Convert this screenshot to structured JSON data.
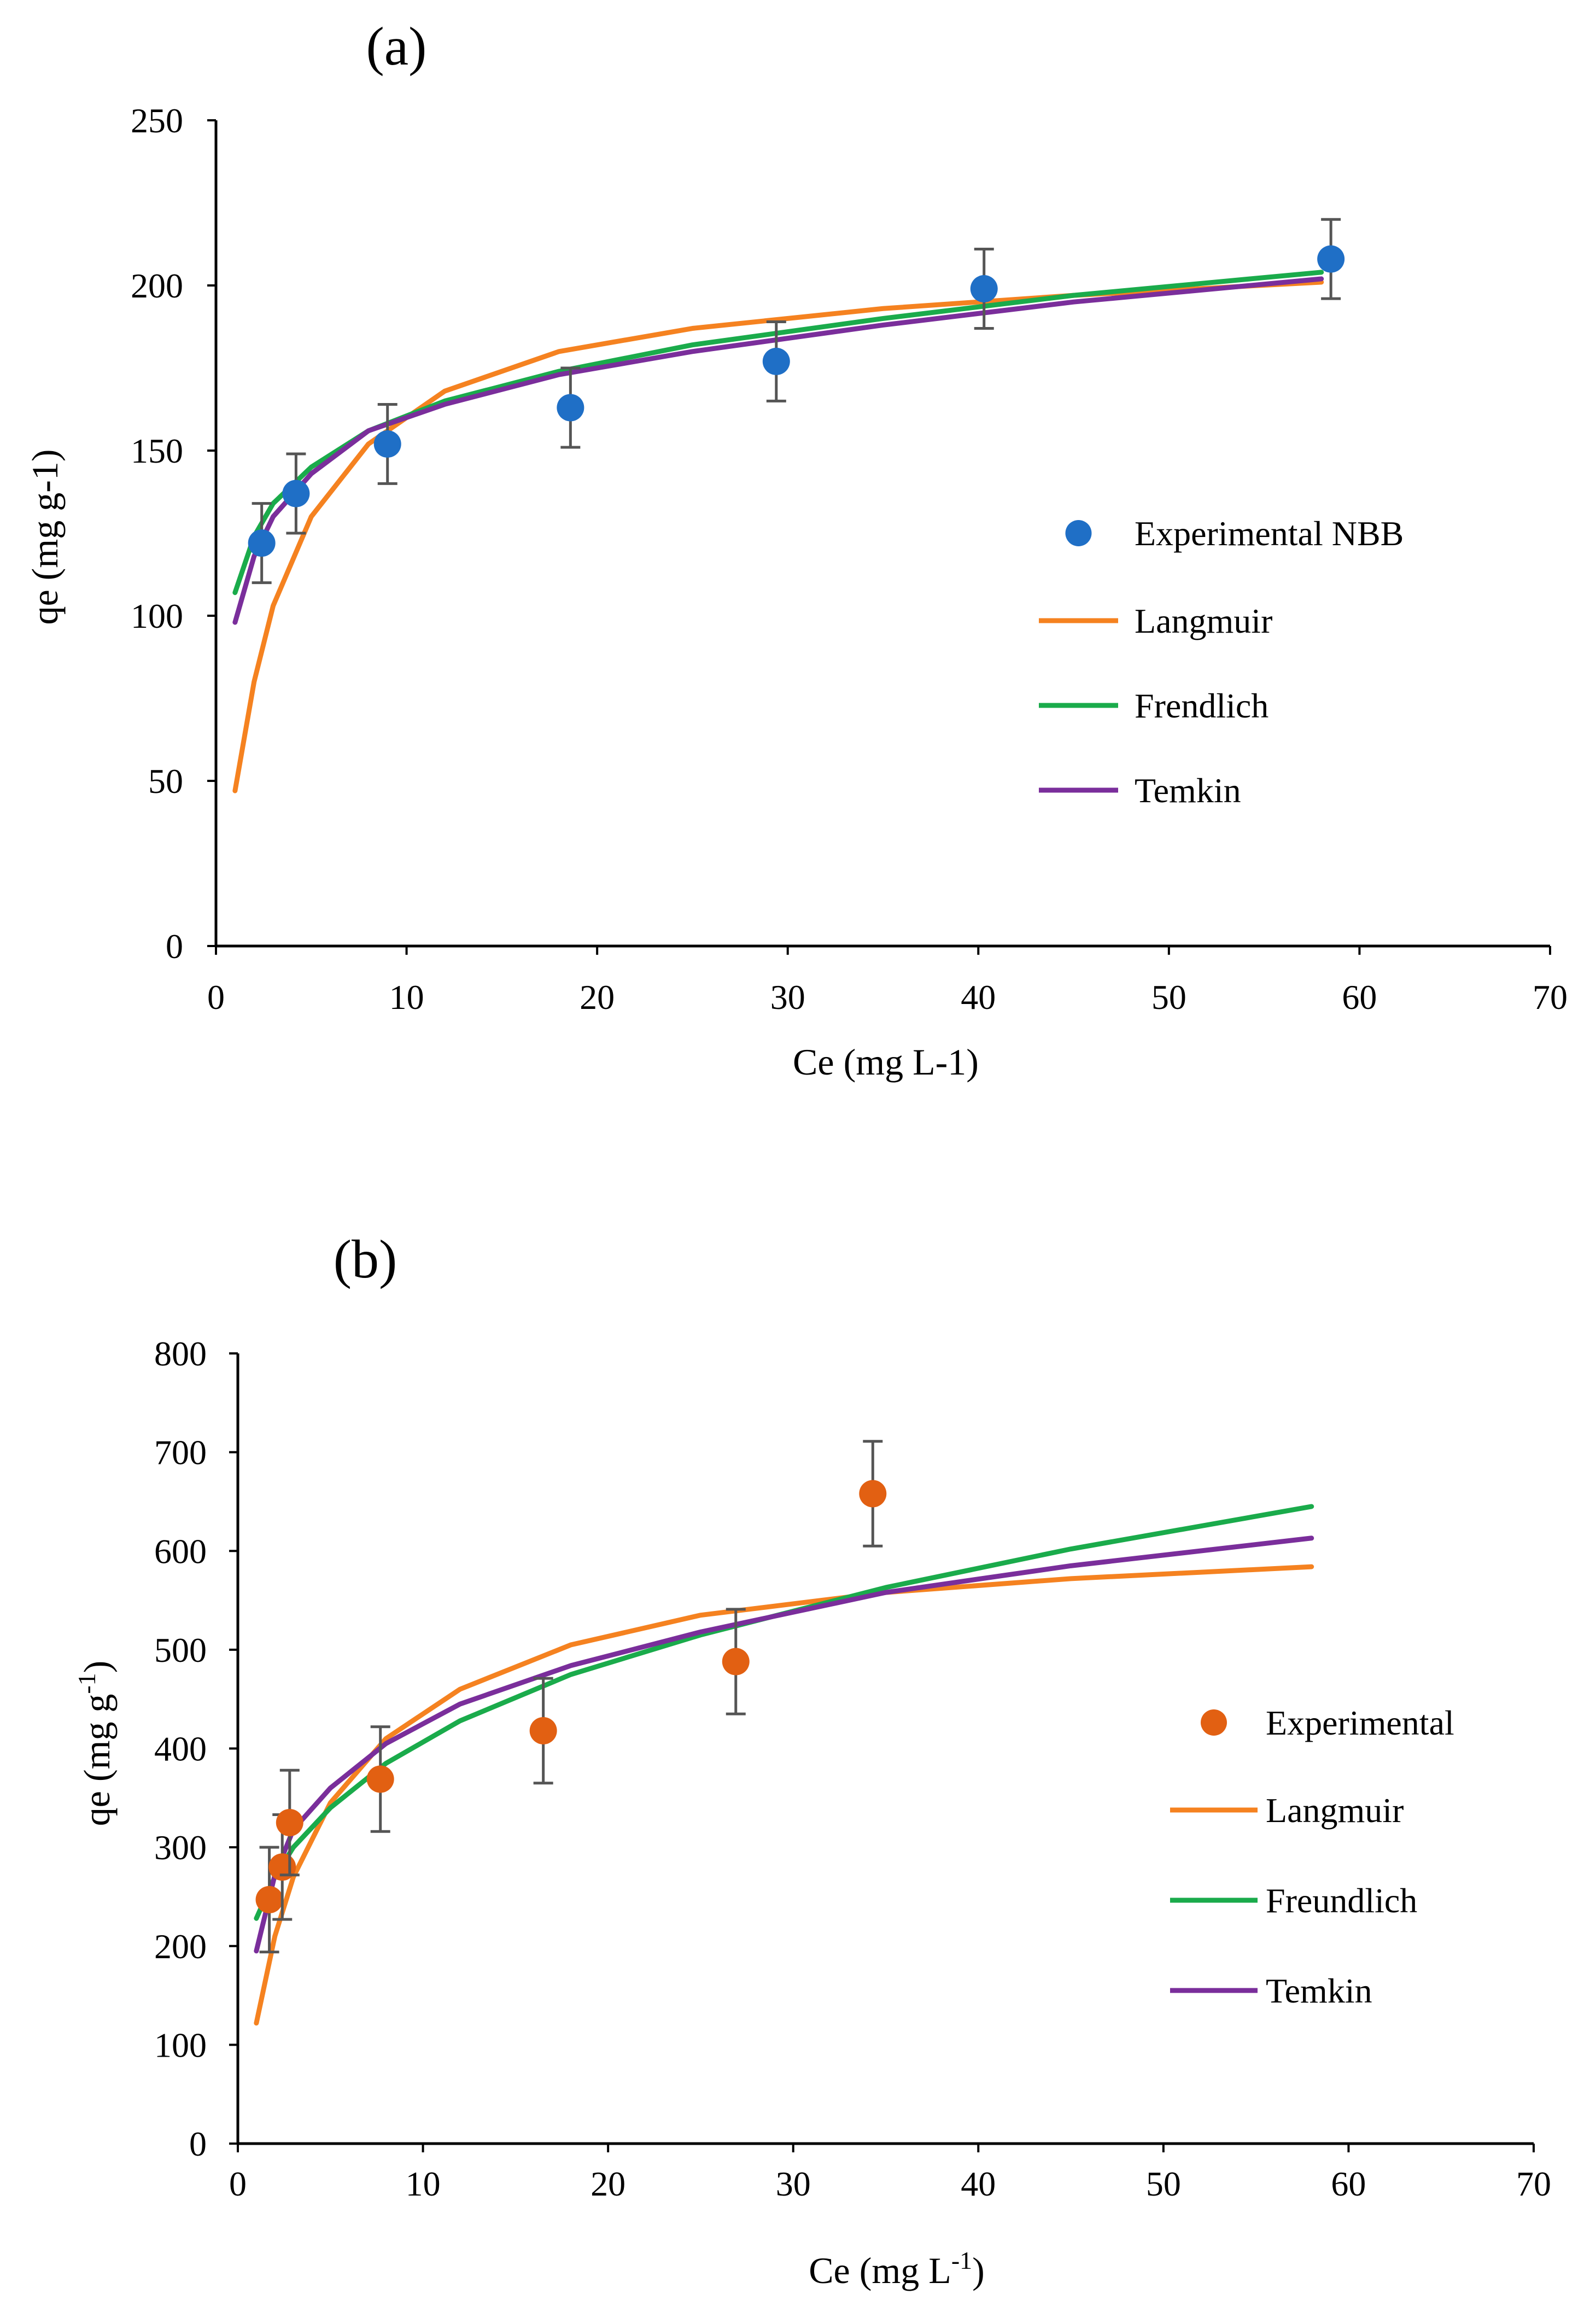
{
  "chart_data": [
    {
      "panel_label": "(a)",
      "type": "scatter",
      "xlabel": "Ce (mg L-1)",
      "ylabel": "qe  (mg g-1)",
      "xlim": [
        0,
        70
      ],
      "ylim": [
        0,
        250
      ],
      "xticks": [
        0,
        10,
        20,
        30,
        40,
        50,
        60,
        70
      ],
      "yticks": [
        0,
        50,
        100,
        150,
        200,
        250
      ],
      "grid": false,
      "legend_position": "right",
      "points": {
        "name": "Experimental NBB",
        "color": "#1f6fc6",
        "x": [
          2.4,
          4.2,
          9.0,
          18.6,
          29.4,
          40.3,
          58.5
        ],
        "y": [
          122,
          137,
          152,
          163,
          177,
          199,
          208
        ],
        "error": [
          12,
          12,
          12,
          12,
          12,
          12,
          12
        ]
      },
      "curves": [
        {
          "name": "Langmuir",
          "color": "#f58220",
          "x": [
            1,
            2,
            3,
            5,
            8,
            12,
            18,
            25,
            35,
            45,
            58
          ],
          "y": [
            47,
            80,
            103,
            130,
            152,
            168,
            180,
            187,
            193,
            197,
            201
          ]
        },
        {
          "name": "Frendlich",
          "color": "#1aab4b",
          "x": [
            1,
            2,
            3,
            5,
            8,
            12,
            18,
            25,
            35,
            45,
            58
          ],
          "y": [
            107,
            124,
            134,
            145,
            156,
            165,
            174,
            182,
            190,
            197,
            204
          ]
        },
        {
          "name": "Temkin",
          "color": "#7a2e9b",
          "x": [
            1,
            2,
            3,
            5,
            8,
            12,
            18,
            25,
            35,
            45,
            58
          ],
          "y": [
            98,
            118,
            130,
            143,
            156,
            164,
            173,
            180,
            188,
            195,
            202
          ]
        }
      ]
    },
    {
      "panel_label": "(b)",
      "type": "scatter",
      "xlabel": "Ce (mg L",
      "xlabel_sup": "-1",
      "xlabel_end": ")",
      "ylabel": "qe (mg g",
      "ylabel_sup": "-1",
      "ylabel_end": ")",
      "xlim": [
        0,
        70
      ],
      "ylim": [
        0,
        800
      ],
      "xticks": [
        0,
        10,
        20,
        30,
        40,
        50,
        60,
        70
      ],
      "yticks": [
        0,
        100,
        200,
        300,
        400,
        500,
        600,
        700,
        800
      ],
      "grid": false,
      "legend_position": "right",
      "points": {
        "name": "Experimental",
        "color": "#e26012",
        "x": [
          1.7,
          2.4,
          2.8,
          7.7,
          16.5,
          26.9,
          34.3
        ],
        "y": [
          247,
          280,
          325,
          369,
          418,
          488,
          658
        ],
        "error": [
          53,
          53,
          53,
          53,
          53,
          53,
          53
        ]
      },
      "curves": [
        {
          "name": "Langmuir",
          "color": "#f58220",
          "x": [
            1,
            2,
            3,
            5,
            8,
            12,
            18,
            25,
            35,
            45,
            58
          ],
          "y": [
            122,
            210,
            270,
            345,
            410,
            460,
            505,
            535,
            558,
            572,
            584
          ]
        },
        {
          "name": "Freundlich",
          "color": "#1aab4b",
          "x": [
            1,
            2,
            3,
            5,
            8,
            12,
            18,
            25,
            35,
            45,
            58
          ],
          "y": [
            228,
            270,
            300,
            340,
            385,
            428,
            475,
            515,
            563,
            602,
            645
          ]
        },
        {
          "name": "Temkin",
          "color": "#7a2e9b",
          "x": [
            1,
            2,
            3,
            5,
            8,
            12,
            18,
            25,
            35,
            45,
            58
          ],
          "y": [
            195,
            272,
            318,
            360,
            405,
            445,
            484,
            518,
            558,
            585,
            613
          ]
        }
      ]
    }
  ]
}
